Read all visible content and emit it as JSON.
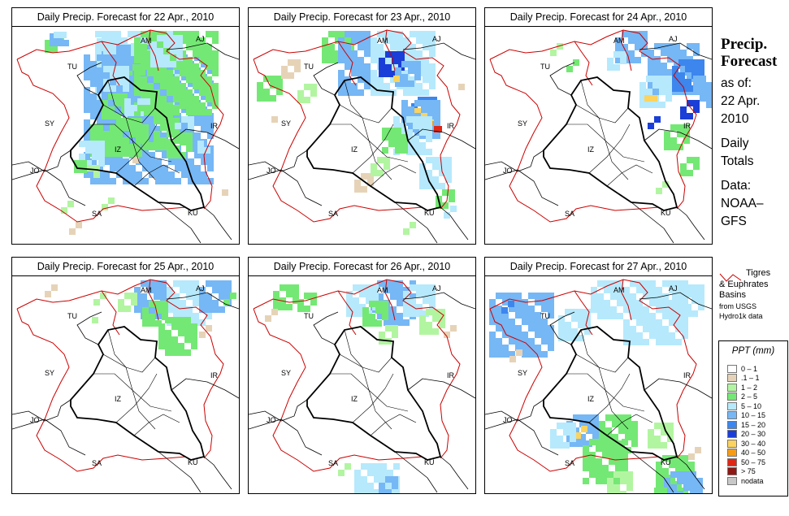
{
  "panels": [
    {
      "title": "Daily Precip. Forecast for  22 Apr., 2010",
      "cells": [
        [
          40,
          8,
          6,
          "2-5"
        ],
        [
          46,
          8,
          5,
          "10-15"
        ],
        [
          51,
          6,
          3,
          "5-10"
        ],
        [
          102,
          5,
          25,
          "5-10"
        ],
        [
          110,
          22,
          22,
          "10-15"
        ],
        [
          104,
          14,
          6,
          "5-10"
        ],
        [
          88,
          34,
          40,
          "10-15"
        ],
        [
          140,
          46,
          6,
          "2-5"
        ],
        [
          146,
          20,
          5,
          "5-10"
        ],
        [
          130,
          60,
          10,
          "10-15"
        ],
        [
          112,
          48,
          8,
          "5-10"
        ],
        [
          150,
          5,
          26,
          "2-5"
        ],
        [
          170,
          10,
          10,
          "5-10"
        ],
        [
          110,
          82,
          8,
          "2-5"
        ],
        [
          138,
          88,
          8,
          "5-10"
        ],
        [
          150,
          96,
          14,
          "2-5"
        ],
        [
          142,
          110,
          8,
          "10-15"
        ],
        [
          120,
          112,
          12,
          "2-5"
        ],
        [
          96,
          120,
          10,
          "2-5"
        ],
        [
          82,
          140,
          8,
          "5-10"
        ],
        [
          76,
          164,
          4,
          "2-5"
        ],
        [
          92,
          170,
          4,
          "1-2"
        ],
        [
          190,
          130,
          8,
          "2-5"
        ],
        [
          200,
          110,
          5,
          "5-10"
        ],
        [
          228,
          140,
          4,
          "5-10"
        ],
        [
          140,
          160,
          3,
          ".1-1"
        ],
        [
          250,
          120,
          2,
          ".1-1"
        ],
        [
          258,
          200,
          3,
          ".1-1"
        ],
        [
          60,
          214,
          4,
          "1-2"
        ],
        [
          70,
          240,
          4,
          ".1-1"
        ],
        [
          110,
          210,
          4,
          "1-2"
        ]
      ]
    },
    {
      "title": "Daily Precip. Forecast for  23 Apr., 2010",
      "cells": [
        [
          90,
          5,
          10,
          "2-5"
        ],
        [
          110,
          5,
          20,
          "10-15"
        ],
        [
          150,
          5,
          20,
          "5-10"
        ],
        [
          160,
          30,
          8,
          "20-30"
        ],
        [
          180,
          42,
          8,
          "10-15"
        ],
        [
          200,
          86,
          8,
          "15-20"
        ],
        [
          204,
          100,
          8,
          "30-40"
        ],
        [
          214,
          116,
          4,
          "40-50"
        ],
        [
          222,
          122,
          3,
          "50-75"
        ],
        [
          188,
          90,
          12,
          "10-15"
        ],
        [
          178,
          110,
          12,
          "5-10"
        ],
        [
          164,
          124,
          8,
          "2-5"
        ],
        [
          210,
          160,
          10,
          "5-10"
        ],
        [
          230,
          200,
          6,
          "2-5"
        ],
        [
          240,
          220,
          4,
          "5-10"
        ],
        [
          10,
          60,
          8,
          "2-5"
        ],
        [
          40,
          40,
          6,
          ".1-1"
        ],
        [
          60,
          70,
          6,
          "1-2"
        ],
        [
          20,
          110,
          3,
          ".1-1"
        ],
        [
          150,
          40,
          2,
          "30-40"
        ],
        [
          170,
          60,
          3,
          "30-40"
        ],
        [
          130,
          180,
          6,
          ".1-1"
        ],
        [
          150,
          160,
          6,
          "1-2"
        ],
        [
          250,
          70,
          3,
          ".1-1"
        ],
        [
          190,
          240,
          4,
          "1-2"
        ]
      ]
    },
    {
      "title": "Daily Precip. Forecast for  24 Apr., 2010",
      "cells": [
        [
          160,
          5,
          10,
          "10-15"
        ],
        [
          200,
          20,
          16,
          "10-15"
        ],
        [
          230,
          40,
          10,
          "15-20"
        ],
        [
          256,
          60,
          10,
          "10-15"
        ],
        [
          240,
          90,
          6,
          "20-30"
        ],
        [
          190,
          60,
          10,
          "5-10"
        ],
        [
          150,
          30,
          6,
          "5-10"
        ],
        [
          220,
          120,
          8,
          "2-5"
        ],
        [
          200,
          110,
          4,
          "20-30"
        ],
        [
          240,
          160,
          6,
          "2-5"
        ],
        [
          210,
          190,
          4,
          "1-2"
        ],
        [
          100,
          40,
          4,
          "2-5"
        ],
        [
          80,
          20,
          4,
          "1-2"
        ],
        [
          196,
          84,
          3,
          "30-40"
        ],
        [
          260,
          220,
          2,
          ".1-1"
        ]
      ]
    },
    {
      "title": "Daily Precip. Forecast for  25 Apr., 2010",
      "cells": [
        [
          150,
          5,
          12,
          "10-15"
        ],
        [
          190,
          5,
          14,
          "5-10"
        ],
        [
          230,
          5,
          10,
          "10-15"
        ],
        [
          160,
          30,
          8,
          "2-5"
        ],
        [
          180,
          50,
          12,
          "2-5"
        ],
        [
          130,
          20,
          6,
          "1-2"
        ],
        [
          260,
          20,
          4,
          "2-5"
        ],
        [
          100,
          20,
          4,
          "1-2"
        ],
        [
          40,
          10,
          4,
          ".1-1"
        ],
        [
          90,
          50,
          3,
          "1-2"
        ],
        [
          230,
          60,
          4,
          ".1-1"
        ],
        [
          200,
          240,
          2,
          ".1-1"
        ]
      ]
    },
    {
      "title": "Daily Precip. Forecast for  26 Apr., 2010",
      "cells": [
        [
          150,
          5,
          14,
          "10-15"
        ],
        [
          120,
          10,
          10,
          "5-10"
        ],
        [
          190,
          10,
          10,
          "5-10"
        ],
        [
          30,
          10,
          8,
          "2-5"
        ],
        [
          60,
          20,
          6,
          "2-5"
        ],
        [
          20,
          40,
          4,
          ".1-1"
        ],
        [
          140,
          30,
          8,
          "2-5"
        ],
        [
          160,
          60,
          6,
          "1-2"
        ],
        [
          210,
          40,
          8,
          "1-2"
        ],
        [
          240,
          60,
          4,
          ".1-1"
        ],
        [
          130,
          230,
          14,
          "5-10"
        ],
        [
          160,
          246,
          6,
          "10-15"
        ],
        [
          110,
          230,
          4,
          "1-2"
        ]
      ]
    },
    {
      "title": "Daily Precip. Forecast for  27 Apr., 2010",
      "cells": [
        [
          5,
          20,
          20,
          "10-15"
        ],
        [
          20,
          30,
          4,
          "15-20"
        ],
        [
          90,
          40,
          10,
          "5-10"
        ],
        [
          130,
          5,
          12,
          "5-10"
        ],
        [
          170,
          5,
          20,
          "5-10"
        ],
        [
          230,
          10,
          10,
          "5-10"
        ],
        [
          100,
          170,
          10,
          "10-15"
        ],
        [
          110,
          184,
          4,
          "30-40"
        ],
        [
          80,
          180,
          8,
          "5-10"
        ],
        [
          120,
          200,
          14,
          "2-5"
        ],
        [
          140,
          170,
          12,
          "2-5"
        ],
        [
          200,
          180,
          8,
          "1-2"
        ],
        [
          210,
          220,
          12,
          "2-5"
        ],
        [
          220,
          240,
          12,
          "10-15"
        ],
        [
          200,
          260,
          6,
          "2-5"
        ],
        [
          150,
          240,
          8,
          "1-2"
        ],
        [
          250,
          210,
          4,
          ".1-1"
        ],
        [
          30,
          90,
          4,
          ".1-1"
        ]
      ]
    }
  ],
  "map_labels": [
    {
      "text": "AM",
      "x": 158,
      "y": 20
    },
    {
      "text": "AJ",
      "x": 226,
      "y": 18
    },
    {
      "text": "TU",
      "x": 68,
      "y": 52
    },
    {
      "text": "SY",
      "x": 40,
      "y": 122
    },
    {
      "text": "IR",
      "x": 244,
      "y": 125
    },
    {
      "text": "IZ",
      "x": 126,
      "y": 154
    },
    {
      "text": "JO",
      "x": 22,
      "y": 180
    },
    {
      "text": "SA",
      "x": 98,
      "y": 233
    },
    {
      "text": "KU",
      "x": 216,
      "y": 232
    }
  ],
  "side": {
    "title1": "Precip.",
    "title2": "Forecast",
    "line1": "as of:",
    "line2": "22 Apr.",
    "line3": "2010",
    "line4": "Daily",
    "line5": "Totals",
    "line6": "Data:",
    "line7": "NOAA–",
    "line8": "GFS"
  },
  "basin_legend": {
    "line1": "Tigres",
    "line2": "& Euphrates",
    "line3": "Basins",
    "line4": "from USGS",
    "line5": "Hydro1k data",
    "line_color": "#cc0000"
  },
  "legend": {
    "title": "PPT (mm)",
    "items": [
      {
        "label": "0 – 1",
        "key": "0-1",
        "color": "#ffffff"
      },
      {
        "label": ".1 – 1",
        "key": ".1-1",
        "color": "#e6d3b7"
      },
      {
        "label": "1 – 2",
        "key": "1-2",
        "color": "#b2f5a1"
      },
      {
        "label": "2 – 5",
        "key": "2-5",
        "color": "#74e874"
      },
      {
        "label": "5 – 10",
        "key": "5-10",
        "color": "#b6e9fc"
      },
      {
        "label": "10 – 15",
        "key": "10-15",
        "color": "#76b7f5"
      },
      {
        "label": "15 – 20",
        "key": "15-20",
        "color": "#3c86ee"
      },
      {
        "label": "20 – 30",
        "key": "20-30",
        "color": "#1a3ed7"
      },
      {
        "label": "30 – 40",
        "key": "30-40",
        "color": "#fbd35e"
      },
      {
        "label": "40 – 50",
        "key": "40-50",
        "color": "#f79b15"
      },
      {
        "label": "50 – 75",
        "key": "50-75",
        "color": "#e02717"
      },
      {
        "label": "> 75",
        "key": ">75",
        "color": "#8e1814"
      },
      {
        "label": "nodata",
        "key": "nodata",
        "color": "#c8c8c8"
      }
    ]
  }
}
